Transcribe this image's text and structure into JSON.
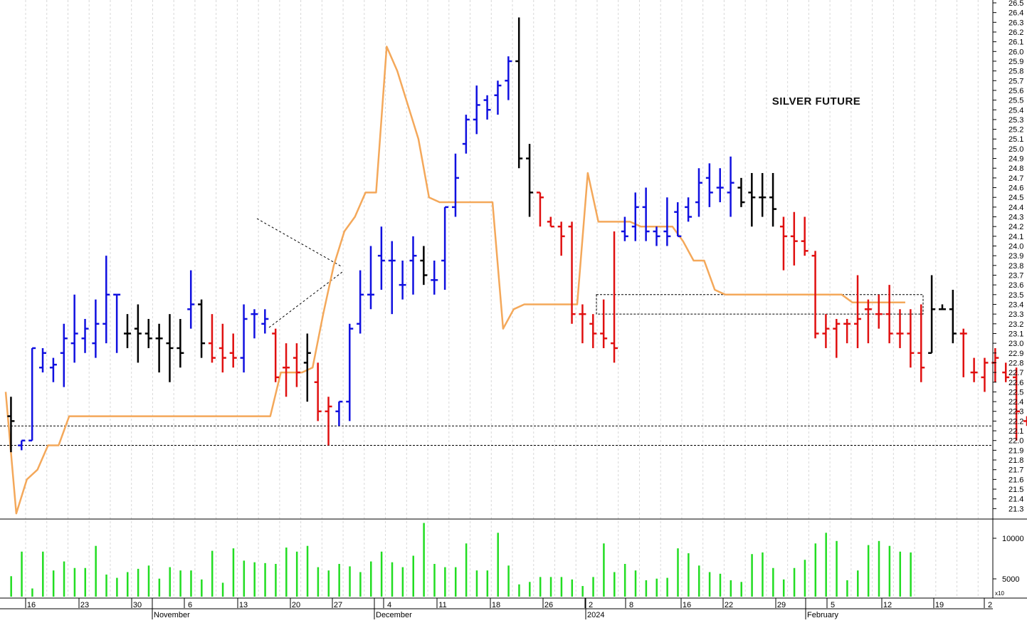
{
  "chart_data": {
    "type": "ohlc",
    "title": "SILVER FUTURE",
    "y_axis": {
      "min": 21.2,
      "max": 26.5,
      "position": "right",
      "ticks": [
        21.3,
        21.4,
        21.5,
        21.6,
        21.7,
        21.8,
        21.9,
        22.0,
        22.1,
        22.2,
        22.3,
        22.4,
        22.5,
        22.6,
        22.7,
        22.8,
        22.9,
        23.0,
        23.1,
        23.2,
        23.3,
        23.4,
        23.5,
        23.6,
        23.7,
        23.8,
        23.9,
        24.0,
        24.1,
        24.2,
        24.3,
        24.4,
        24.5,
        24.6,
        24.7,
        24.8,
        24.9,
        25.0,
        25.1,
        25.2,
        25.3,
        25.4,
        25.5,
        25.6,
        25.7,
        25.8,
        25.9,
        26.0,
        26.1,
        26.2,
        26.3,
        26.4,
        26.5
      ]
    },
    "x_axis": {
      "day_labels": [
        "16",
        "23",
        "30",
        "6",
        "13",
        "20",
        "27",
        "4",
        "11",
        "18",
        "26",
        "2",
        "8",
        "16",
        "22",
        "29",
        "5",
        "12",
        "19",
        "2"
      ],
      "month_labels": [
        "November",
        "December",
        "2024",
        "February"
      ]
    },
    "price_bars": [
      {
        "c": "k",
        "h": 22.45,
        "l": 21.88,
        "o": 22.25,
        "cl": 22.2
      },
      {
        "c": "b",
        "h": 22.0,
        "l": 21.9,
        "o": 21.95,
        "cl": 22.0
      },
      {
        "c": "b",
        "h": 22.95,
        "l": 22.0,
        "o": 22.0,
        "cl": 22.95
      },
      {
        "c": "b",
        "h": 22.95,
        "l": 22.7,
        "o": 22.75,
        "cl": 22.9
      },
      {
        "c": "b",
        "h": 22.85,
        "l": 22.6,
        "o": 22.75,
        "cl": 22.78
      },
      {
        "c": "b",
        "h": 23.2,
        "l": 22.55,
        "o": 22.9,
        "cl": 23.05
      },
      {
        "c": "b",
        "h": 23.5,
        "l": 22.8,
        "o": 23.0,
        "cl": 23.1
      },
      {
        "c": "b",
        "h": 23.25,
        "l": 22.9,
        "o": 23.05,
        "cl": 23.15
      },
      {
        "c": "b",
        "h": 23.45,
        "l": 22.85,
        "o": 23.0,
        "cl": 23.2
      },
      {
        "c": "b",
        "h": 23.9,
        "l": 23.0,
        "o": 23.2,
        "cl": 23.5
      },
      {
        "c": "b",
        "h": 23.5,
        "l": 22.9,
        "o": 23.5,
        "cl": 23.5
      },
      {
        "c": "k",
        "h": 23.3,
        "l": 22.95,
        "o": 23.1,
        "cl": 23.1
      },
      {
        "c": "k",
        "h": 23.4,
        "l": 22.8,
        "o": 23.15,
        "cl": 23.1
      },
      {
        "c": "k",
        "h": 23.25,
        "l": 22.95,
        "o": 23.1,
        "cl": 23.05
      },
      {
        "c": "k",
        "h": 23.2,
        "l": 22.7,
        "o": 23.05,
        "cl": 23.05
      },
      {
        "c": "k",
        "h": 23.3,
        "l": 22.6,
        "o": 23.0,
        "cl": 22.95
      },
      {
        "c": "k",
        "h": 23.25,
        "l": 22.75,
        "o": 22.95,
        "cl": 22.9
      },
      {
        "c": "b",
        "h": 23.75,
        "l": 23.15,
        "o": 23.35,
        "cl": 23.4
      },
      {
        "c": "k",
        "h": 23.45,
        "l": 22.85,
        "o": 23.4,
        "cl": 23.0
      },
      {
        "c": "r",
        "h": 23.3,
        "l": 22.8,
        "o": 23.0,
        "cl": 22.85
      },
      {
        "c": "r",
        "h": 23.2,
        "l": 22.7,
        "o": 22.95,
        "cl": 22.85
      },
      {
        "c": "r",
        "h": 23.1,
        "l": 22.75,
        "o": 22.9,
        "cl": 22.85
      },
      {
        "c": "b",
        "h": 23.4,
        "l": 22.7,
        "o": 22.85,
        "cl": 23.25
      },
      {
        "c": "b",
        "h": 23.35,
        "l": 23.05,
        "o": 23.3,
        "cl": 23.3
      },
      {
        "c": "b",
        "h": 23.35,
        "l": 23.1,
        "o": 23.2,
        "cl": 23.25
      },
      {
        "c": "r",
        "h": 23.15,
        "l": 22.6,
        "o": 23.1,
        "cl": 22.65
      },
      {
        "c": "r",
        "h": 23.0,
        "l": 22.45,
        "o": 22.75,
        "cl": 22.75
      },
      {
        "c": "r",
        "h": 23.0,
        "l": 22.55,
        "o": 22.85,
        "cl": 22.7
      },
      {
        "c": "k",
        "h": 23.1,
        "l": 22.4,
        "o": 22.8,
        "cl": 22.9
      },
      {
        "c": "r",
        "h": 22.8,
        "l": 22.2,
        "o": 22.6,
        "cl": 22.3
      },
      {
        "c": "r",
        "h": 22.45,
        "l": 21.95,
        "o": 22.3,
        "cl": 22.35
      },
      {
        "c": "b",
        "h": 22.4,
        "l": 22.15,
        "o": 22.3,
        "cl": 22.4
      },
      {
        "c": "b",
        "h": 23.2,
        "l": 22.2,
        "o": 22.4,
        "cl": 23.15
      },
      {
        "c": "b",
        "h": 23.75,
        "l": 23.1,
        "o": 23.2,
        "cl": 23.5
      },
      {
        "c": "b",
        "h": 24.0,
        "l": 23.35,
        "o": 23.5,
        "cl": 23.5
      },
      {
        "c": "b",
        "h": 24.2,
        "l": 23.55,
        "o": 23.9,
        "cl": 23.85
      },
      {
        "c": "b",
        "h": 24.05,
        "l": 23.3,
        "o": 23.85,
        "cl": 23.85
      },
      {
        "c": "b",
        "h": 23.85,
        "l": 23.45,
        "o": 23.6,
        "cl": 23.6
      },
      {
        "c": "b",
        "h": 24.1,
        "l": 23.5,
        "o": 23.85,
        "cl": 23.9
      },
      {
        "c": "k",
        "h": 24.0,
        "l": 23.6,
        "o": 23.85,
        "cl": 23.7
      },
      {
        "c": "b",
        "h": 23.85,
        "l": 23.5,
        "o": 23.65,
        "cl": 23.65
      },
      {
        "c": "b",
        "h": 24.4,
        "l": 23.55,
        "o": 23.85,
        "cl": 24.4
      },
      {
        "c": "b",
        "h": 24.95,
        "l": 24.3,
        "o": 24.4,
        "cl": 24.7
      },
      {
        "c": "b",
        "h": 25.35,
        "l": 24.95,
        "o": 25.05,
        "cl": 25.3
      },
      {
        "c": "b",
        "h": 25.65,
        "l": 25.15,
        "o": 25.3,
        "cl": 25.45
      },
      {
        "c": "b",
        "h": 25.55,
        "l": 25.3,
        "o": 25.5,
        "cl": 25.4
      },
      {
        "c": "b",
        "h": 25.7,
        "l": 25.35,
        "o": 25.55,
        "cl": 25.65
      },
      {
        "c": "b",
        "h": 25.95,
        "l": 25.5,
        "o": 25.7,
        "cl": 25.9
      },
      {
        "c": "k",
        "h": 26.35,
        "l": 24.8,
        "o": 25.9,
        "cl": 24.9
      },
      {
        "c": "k",
        "h": 25.05,
        "l": 24.3,
        "o": 24.9,
        "cl": 24.55
      },
      {
        "c": "r",
        "h": 24.55,
        "l": 24.2,
        "o": 24.55,
        "cl": 24.5
      },
      {
        "c": "r",
        "h": 24.3,
        "l": 24.2,
        "o": 24.25,
        "cl": 24.2
      },
      {
        "c": "r",
        "h": 24.25,
        "l": 23.9,
        "o": 24.2,
        "cl": 24.1
      },
      {
        "c": "r",
        "h": 24.25,
        "l": 23.2,
        "o": 24.2,
        "cl": 23.3
      },
      {
        "c": "r",
        "h": 23.4,
        "l": 23.0,
        "o": 23.3,
        "cl": 23.3
      },
      {
        "c": "r",
        "h": 23.3,
        "l": 22.95,
        "o": 23.2,
        "cl": 23.1
      },
      {
        "c": "r",
        "h": 23.45,
        "l": 22.95,
        "o": 23.1,
        "cl": 23.05
      },
      {
        "c": "r",
        "h": 24.15,
        "l": 22.8,
        "o": 23.0,
        "cl": 22.95
      },
      {
        "c": "b",
        "h": 24.3,
        "l": 24.05,
        "o": 24.15,
        "cl": 24.1
      },
      {
        "c": "b",
        "h": 24.55,
        "l": 24.05,
        "o": 24.2,
        "cl": 24.4
      },
      {
        "c": "b",
        "h": 24.6,
        "l": 24.05,
        "o": 24.4,
        "cl": 24.15
      },
      {
        "c": "b",
        "h": 24.2,
        "l": 24.0,
        "o": 24.15,
        "cl": 24.1
      },
      {
        "c": "b",
        "h": 24.5,
        "l": 24.0,
        "o": 24.15,
        "cl": 24.1
      },
      {
        "c": "b",
        "h": 24.45,
        "l": 24.1,
        "o": 24.35,
        "cl": 24.1
      },
      {
        "c": "b",
        "h": 24.5,
        "l": 24.25,
        "o": 24.4,
        "cl": 24.3
      },
      {
        "c": "b",
        "h": 24.8,
        "l": 24.3,
        "o": 24.45,
        "cl": 24.65
      },
      {
        "c": "b",
        "h": 24.85,
        "l": 24.4,
        "o": 24.7,
        "cl": 24.55
      },
      {
        "c": "b",
        "h": 24.8,
        "l": 24.45,
        "o": 24.6,
        "cl": 24.6
      },
      {
        "c": "b",
        "h": 24.92,
        "l": 24.3,
        "o": 24.55,
        "cl": 24.65
      },
      {
        "c": "k",
        "h": 24.7,
        "l": 24.4,
        "o": 24.6,
        "cl": 24.45
      },
      {
        "c": "k",
        "h": 24.75,
        "l": 24.2,
        "o": 24.55,
        "cl": 24.5
      },
      {
        "c": "k",
        "h": 24.75,
        "l": 24.3,
        "o": 24.5,
        "cl": 24.5
      },
      {
        "c": "k",
        "h": 24.75,
        "l": 24.2,
        "o": 24.5,
        "cl": 24.38
      },
      {
        "c": "r",
        "h": 24.3,
        "l": 23.75,
        "o": 24.2,
        "cl": 24.1
      },
      {
        "c": "r",
        "h": 24.35,
        "l": 23.8,
        "o": 24.1,
        "cl": 24.05
      },
      {
        "c": "r",
        "h": 24.3,
        "l": 23.9,
        "o": 24.05,
        "cl": 23.95
      },
      {
        "c": "r",
        "h": 23.95,
        "l": 23.05,
        "o": 23.9,
        "cl": 23.1
      },
      {
        "c": "r",
        "h": 23.3,
        "l": 22.95,
        "o": 23.1,
        "cl": 23.15
      },
      {
        "c": "r",
        "h": 23.25,
        "l": 22.85,
        "o": 23.15,
        "cl": 23.2
      },
      {
        "c": "r",
        "h": 23.25,
        "l": 23.0,
        "o": 23.2,
        "cl": 23.2
      },
      {
        "c": "r",
        "h": 23.7,
        "l": 22.95,
        "o": 23.2,
        "cl": 23.25
      },
      {
        "c": "r",
        "h": 23.45,
        "l": 23.0,
        "o": 23.35,
        "cl": 23.35
      },
      {
        "c": "r",
        "h": 23.5,
        "l": 23.15,
        "o": 23.3,
        "cl": 23.3
      },
      {
        "c": "r",
        "h": 23.6,
        "l": 23.0,
        "o": 23.3,
        "cl": 23.1
      },
      {
        "c": "r",
        "h": 23.35,
        "l": 22.95,
        "o": 23.1,
        "cl": 23.1
      },
      {
        "c": "r",
        "h": 23.35,
        "l": 22.75,
        "o": 23.1,
        "cl": 22.9
      },
      {
        "c": "r",
        "h": 23.4,
        "l": 22.6,
        "o": 22.9,
        "cl": 22.75
      },
      {
        "c": "k",
        "h": 23.7,
        "l": 22.9,
        "o": 22.9,
        "cl": 23.35
      },
      {
        "c": "k",
        "h": 23.4,
        "l": 23.35,
        "o": 23.35,
        "cl": 23.35
      },
      {
        "c": "k",
        "h": 23.55,
        "l": 23.0,
        "o": 23.35,
        "cl": 23.1
      },
      {
        "c": "r",
        "h": 23.15,
        "l": 22.65,
        "o": 23.1,
        "cl": 23.1
      },
      {
        "c": "r",
        "h": 22.85,
        "l": 22.6,
        "o": 22.7,
        "cl": 22.7
      },
      {
        "c": "r",
        "h": 22.85,
        "l": 22.5,
        "o": 22.65,
        "cl": 22.8
      },
      {
        "c": "r",
        "h": 22.95,
        "l": 22.6,
        "o": 22.8,
        "cl": 22.85
      },
      {
        "c": "r",
        "h": 22.8,
        "l": 22.6,
        "o": 22.7,
        "cl": 22.65
      },
      {
        "c": "r",
        "h": 22.75,
        "l": 22.0,
        "o": 22.65,
        "cl": 22.3
      },
      {
        "c": "r",
        "h": 22.25,
        "l": 22.15,
        "o": 22.2,
        "cl": 22.2
      },
      {
        "c": "k",
        "h": 22.75,
        "l": 22.45,
        "o": 22.5,
        "cl": 22.6
      },
      {
        "c": "k",
        "h": 23.05,
        "l": 22.45,
        "o": 22.6,
        "cl": 22.95
      },
      {
        "c": "k",
        "h": 23.15,
        "l": 22.75,
        "o": 22.95,
        "cl": 22.95
      },
      {
        "c": "k",
        "h": 23.2,
        "l": 22.8,
        "o": 22.95,
        "cl": 22.95
      },
      {
        "c": "k",
        "h": 23.0,
        "l": 22.8,
        "o": 22.85,
        "cl": 22.9
      },
      {
        "c": "b",
        "h": 23.3,
        "l": 22.9,
        "o": 22.9,
        "cl": 23.25
      },
      {
        "c": "b",
        "h": 23.45,
        "l": 23.0,
        "o": 23.25,
        "cl": 23.3
      },
      {
        "c": "b",
        "h": 23.3,
        "l": 23.1,
        "o": 23.25,
        "cl": 23.25
      },
      {
        "c": "b",
        "h": 23.45,
        "l": 23.1,
        "o": 23.3,
        "cl": 23.25
      },
      {
        "c": "b",
        "h": 23.25,
        "l": 22.6,
        "o": 23.15,
        "cl": 23.2
      },
      {
        "c": "r",
        "h": 23.35,
        "l": 22.5,
        "o": 23.25,
        "cl": 22.85
      },
      {
        "c": "r",
        "h": 22.85,
        "l": 22.35,
        "o": 22.85,
        "cl": 22.4
      },
      {
        "c": "r",
        "h": 22.55,
        "l": 22.35,
        "o": 22.45,
        "cl": 22.45
      },
      {
        "c": "r",
        "h": 22.6,
        "l": 22.35,
        "o": 22.5,
        "cl": 22.55
      },
      {
        "c": "r",
        "h": 22.55,
        "l": 22.3,
        "o": 22.55,
        "cl": 22.3
      },
      {
        "c": "k",
        "h": 22.35,
        "l": 22.2,
        "o": 22.3,
        "cl": 22.3
      },
      {
        "c": "k",
        "h": 22.75,
        "l": 22.45,
        "o": 22.65,
        "cl": 22.65
      },
      {
        "c": "k",
        "h": 22.8,
        "l": 22.4,
        "o": 22.65,
        "cl": 22.65
      },
      {
        "c": "k",
        "h": 23.15,
        "l": 22.6,
        "o": 22.65,
        "cl": 22.8
      },
      {
        "c": "r",
        "h": 23.05,
        "l": 22.05,
        "o": 22.8,
        "cl": 22.15
      }
    ],
    "trend_line": [
      [
        0,
        22.5
      ],
      [
        1,
        21.25
      ],
      [
        2,
        21.6
      ],
      [
        3,
        21.7
      ],
      [
        4,
        21.95
      ],
      [
        5,
        21.95
      ],
      [
        6,
        22.25
      ],
      [
        7,
        22.25
      ],
      [
        8,
        22.25
      ],
      [
        9,
        22.25
      ],
      [
        10,
        22.25
      ],
      [
        11,
        22.25
      ],
      [
        12,
        22.25
      ],
      [
        13,
        22.25
      ],
      [
        14,
        22.25
      ],
      [
        15,
        22.25
      ],
      [
        16,
        22.25
      ],
      [
        17,
        22.25
      ],
      [
        18,
        22.25
      ],
      [
        19,
        22.25
      ],
      [
        20,
        22.25
      ],
      [
        21,
        22.25
      ],
      [
        22,
        22.25
      ],
      [
        23,
        22.25
      ],
      [
        24,
        22.25
      ],
      [
        25,
        22.25
      ],
      [
        26,
        22.7
      ],
      [
        27,
        22.7
      ],
      [
        28,
        22.7
      ],
      [
        29,
        22.75
      ],
      [
        30,
        23.3
      ],
      [
        31,
        23.8
      ],
      [
        32,
        24.15
      ],
      [
        33,
        24.3
      ],
      [
        34,
        24.55
      ],
      [
        35,
        24.55
      ],
      [
        36,
        26.05
      ],
      [
        37,
        25.8
      ],
      [
        38,
        25.45
      ],
      [
        39,
        25.1
      ],
      [
        40,
        24.5
      ],
      [
        41,
        24.45
      ],
      [
        42,
        24.45
      ],
      [
        43,
        24.45
      ],
      [
        44,
        24.45
      ],
      [
        45,
        24.45
      ],
      [
        46,
        24.45
      ],
      [
        47,
        23.15
      ],
      [
        48,
        23.35
      ],
      [
        49,
        23.4
      ],
      [
        50,
        23.4
      ],
      [
        51,
        23.4
      ],
      [
        52,
        23.4
      ],
      [
        53,
        23.4
      ],
      [
        54,
        23.4
      ],
      [
        55,
        24.75
      ],
      [
        56,
        24.25
      ],
      [
        57,
        24.25
      ],
      [
        58,
        24.25
      ],
      [
        59,
        24.25
      ],
      [
        60,
        24.2
      ],
      [
        61,
        24.2
      ],
      [
        62,
        24.2
      ],
      [
        63,
        24.2
      ],
      [
        64,
        24.05
      ],
      [
        65,
        23.85
      ],
      [
        66,
        23.85
      ],
      [
        67,
        23.55
      ],
      [
        68,
        23.5
      ],
      [
        69,
        23.5
      ],
      [
        70,
        23.5
      ],
      [
        71,
        23.5
      ],
      [
        72,
        23.5
      ],
      [
        73,
        23.5
      ],
      [
        74,
        23.5
      ],
      [
        75,
        23.5
      ],
      [
        76,
        23.5
      ],
      [
        77,
        23.5
      ],
      [
        78,
        23.5
      ],
      [
        79,
        23.5
      ],
      [
        80,
        23.42
      ],
      [
        81,
        23.42
      ],
      [
        82,
        23.42
      ],
      [
        83,
        23.42
      ],
      [
        84,
        23.42
      ],
      [
        85,
        23.42
      ]
    ],
    "volume_axis": {
      "ticks": [
        5000,
        10000
      ],
      "multiplier_label": "x10"
    },
    "volume": [
      2.5,
      5.5,
      1,
      5.5,
      3.2,
      4.3,
      3.5,
      3.5,
      6.2,
      2.7,
      2.3,
      3,
      3.4,
      3.8,
      2.2,
      3.6,
      3.2,
      3.2,
      2.1,
      5.6,
      1.7,
      5.9,
      4.4,
      4.2,
      4.1,
      4,
      6,
      5.5,
      6.2,
      3.6,
      3.2,
      4,
      3.7,
      3,
      4.3,
      5.5,
      4.2,
      3.6,
      5,
      9,
      4,
      3.6,
      3.6,
      6.5,
      3.2,
      3.2,
      7.8,
      3.8,
      1.5,
      1.8,
      2.4,
      2.4,
      2.4,
      2.1,
      1.3,
      2.4,
      6.5,
      3,
      4,
      3.2,
      2,
      2.2,
      2.3,
      5.9,
      5.3,
      3.8,
      3,
      2.8,
      2,
      1.8,
      5.2,
      5.4,
      3.5,
      2.1,
      3.5,
      4.5,
      6.5,
      7.8,
      6.8,
      2,
      3.2,
      6.3,
      6.8,
      6.2,
      5.5,
      5.4
    ]
  }
}
